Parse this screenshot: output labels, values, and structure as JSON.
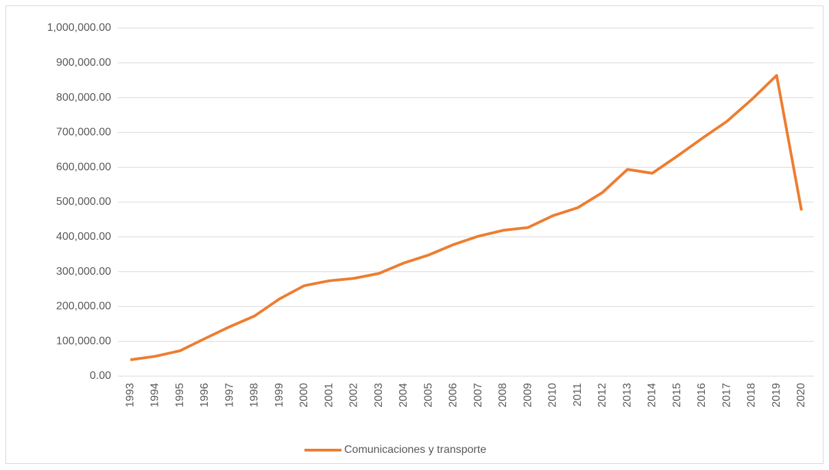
{
  "chart_data": {
    "type": "line",
    "categories": [
      "1993",
      "1994",
      "1995",
      "1996",
      "1997",
      "1998",
      "1999",
      "2000",
      "2001",
      "2002",
      "2003",
      "2004",
      "2005",
      "2006",
      "2007",
      "2008",
      "2009",
      "2010",
      "2011",
      "2012",
      "2013",
      "2014",
      "2015",
      "2016",
      "2017",
      "2018",
      "2019",
      "2020"
    ],
    "series": [
      {
        "name": "Comunicaciones y transporte",
        "color": "#ed7d31",
        "values": [
          47000,
          57000,
          73000,
          108000,
          142000,
          173000,
          222000,
          260000,
          274000,
          281000,
          295000,
          325000,
          348000,
          378000,
          402000,
          419000,
          427000,
          461000,
          484000,
          528000,
          594000,
          583000,
          632000,
          683000,
          732000,
          795000,
          864000,
          476000
        ]
      }
    ],
    "ylim": [
      0,
      1000000
    ],
    "yticks": [
      {
        "value": 0,
        "label": "0.00"
      },
      {
        "value": 100000,
        "label": "100,000.00"
      },
      {
        "value": 200000,
        "label": "200,000.00"
      },
      {
        "value": 300000,
        "label": "300,000.00"
      },
      {
        "value": 400000,
        "label": "400,000.00"
      },
      {
        "value": 500000,
        "label": "500,000.00"
      },
      {
        "value": 600000,
        "label": "600,000.00"
      },
      {
        "value": 700000,
        "label": "700,000.00"
      },
      {
        "value": 800000,
        "label": "800,000.00"
      },
      {
        "value": 900000,
        "label": "900,000.00"
      },
      {
        "value": 1000000,
        "label": "1,000,000.00"
      }
    ],
    "grid": true,
    "legend": "bottom"
  }
}
